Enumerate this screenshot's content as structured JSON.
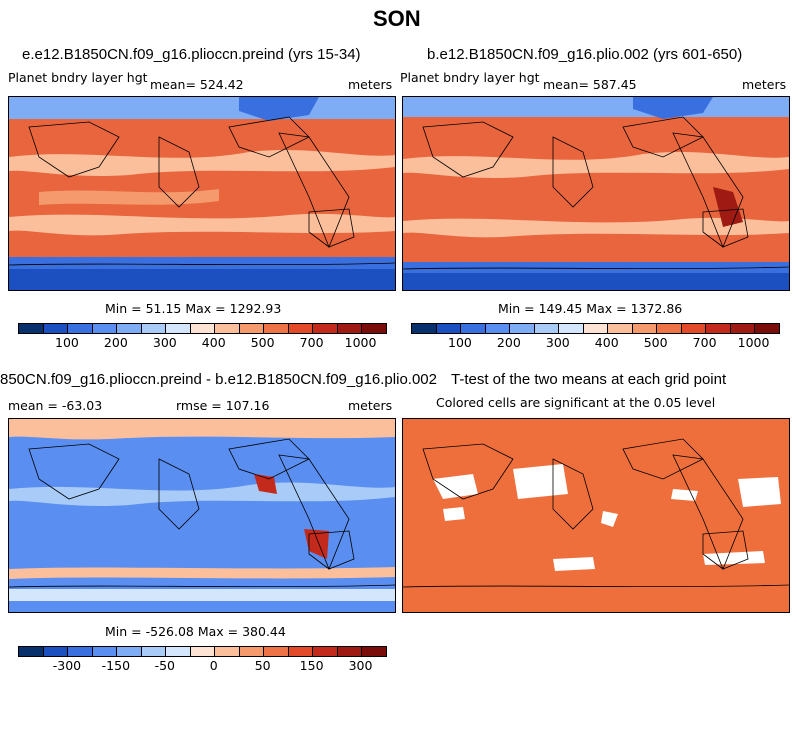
{
  "title": "SON",
  "panels": [
    {
      "title": "e.e12.B1850CN.f09_g16.plioccn.preind (yrs 15-34)",
      "variable": "Planet bndry layer hgt",
      "mean": "mean= 524.42",
      "units": "meters",
      "minmax": "Min =  51.15 Max = 1292.93",
      "colorbar_labels": [
        "100",
        "200",
        "300",
        "400",
        "500",
        "700",
        "1000"
      ]
    },
    {
      "title": "b.e12.B1850CN.f09_g16.plio.002 (yrs 601-650)",
      "variable": "Planet bndry layer hgt",
      "mean": "mean= 587.45",
      "units": "meters",
      "minmax": "Min = 149.45 Max = 1372.86",
      "colorbar_labels": [
        "100",
        "200",
        "300",
        "400",
        "500",
        "700",
        "1000"
      ]
    },
    {
      "title": "850CN.f09_g16.plioccn.preind - b.e12.B1850CN.f09_g16.plio.002",
      "mean": "mean = -63.03",
      "rmse": "rmse = 107.16",
      "units": "meters",
      "minmax": "Min = -526.08 Max = 380.44",
      "colorbar_labels": [
        "-300",
        "-150",
        "-50",
        "0",
        "50",
        "150",
        "300"
      ]
    },
    {
      "title": "T-test of the two means at each grid point",
      "subtitle": "Colored cells are significant at the 0.05 level"
    }
  ],
  "colors": {
    "abs_scale": [
      "#08306b",
      "#1c4fbf",
      "#3a6fe0",
      "#5a8ef0",
      "#7fadf5",
      "#a8cbf8",
      "#d4e6fb",
      "#fde3d4",
      "#fbbf9c",
      "#f59a6c",
      "#ee7447",
      "#e24a2a",
      "#c42a1c",
      "#9e1a12",
      "#7a0d0a"
    ],
    "diff_scale": [
      "#08306b",
      "#1c4fbf",
      "#3a6fe0",
      "#5a8ef0",
      "#7fadf5",
      "#a8cbf8",
      "#d4e6fb",
      "#fde3d4",
      "#fbbf9c",
      "#f59a6c",
      "#ee7447",
      "#e24a2a",
      "#c42a1c",
      "#9e1a12",
      "#7a0d0a"
    ],
    "ttest_fill": "#ef6f3c"
  }
}
